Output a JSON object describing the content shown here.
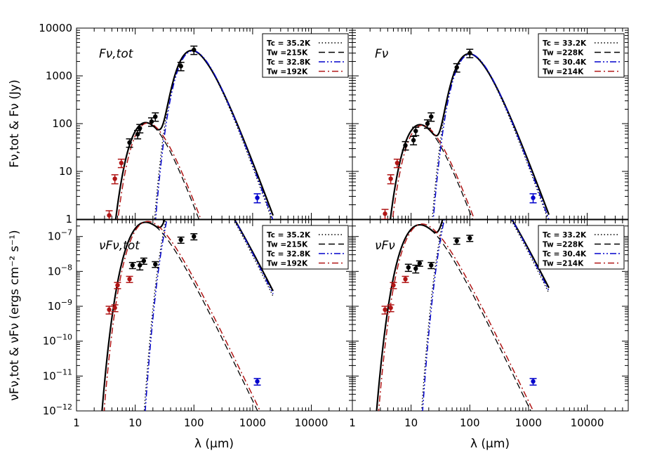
{
  "figure": {
    "xlabel": "λ (μm)",
    "ylabel_top": "Fν,tot & Fν (Jy)",
    "ylabel_bottom": "νFν,tot & νFν (ergs cm⁻² s⁻¹)",
    "colors": {
      "black": "#000000",
      "blue": "#0000cc",
      "red": "#b01515"
    }
  },
  "chart_data": [
    {
      "type": "line",
      "panel": "top-left",
      "title": "Fν,tot",
      "x_scale": "log",
      "y_scale": "log",
      "xlim": [
        1,
        50000
      ],
      "ylim": [
        1,
        10000
      ],
      "x_ticks": [
        "1",
        "10",
        "100",
        "1000",
        "10000"
      ],
      "y_ticks": [
        "1",
        "10",
        "100",
        "1000",
        "10000"
      ],
      "legend": {
        "position": "top-right",
        "entries": [
          {
            "label": "Tc = 35.2K",
            "color": "#000000",
            "style": "dotted"
          },
          {
            "label": "Tw =215K",
            "color": "#000000",
            "style": "dashed"
          },
          {
            "label": "Tc = 32.8K",
            "color": "#0000cc",
            "style": "dash-dot-dot"
          },
          {
            "label": "Tw =192K",
            "color": "#b01515",
            "style": "dash-dot"
          }
        ]
      },
      "points": [
        {
          "x": 3.6,
          "y": 1.2,
          "err": 0.3,
          "color": "#b01515"
        },
        {
          "x": 4.5,
          "y": 7,
          "err": 1.5,
          "color": "#b01515"
        },
        {
          "x": 5.8,
          "y": 15,
          "err": 3,
          "color": "#b01515"
        },
        {
          "x": 8.0,
          "y": 40,
          "err": 8,
          "color": "#000000"
        },
        {
          "x": 11,
          "y": 60,
          "err": 12,
          "color": "#000000"
        },
        {
          "x": 12,
          "y": 80,
          "err": 16,
          "color": "#000000"
        },
        {
          "x": 19,
          "y": 110,
          "err": 22,
          "color": "#000000"
        },
        {
          "x": 22,
          "y": 140,
          "err": 28,
          "color": "#000000"
        },
        {
          "x": 60,
          "y": 1600,
          "err": 320,
          "color": "#000000"
        },
        {
          "x": 100,
          "y": 3500,
          "err": 700,
          "color": "#000000"
        },
        {
          "x": 1200,
          "y": 2.8,
          "err": 0.6,
          "color": "#0000cc"
        }
      ],
      "model": {
        "Tc": 35.2,
        "Tw": 215,
        "cold_peak": 3400,
        "warm_peak": 105,
        "cold_scale": 1.0,
        "warm_scale": 0.98
      }
    },
    {
      "type": "line",
      "panel": "top-right",
      "title": "Fν",
      "x_scale": "log",
      "y_scale": "log",
      "xlim": [
        1,
        50000
      ],
      "ylim": [
        1,
        10000
      ],
      "x_ticks": [
        "1",
        "10",
        "100",
        "1000",
        "10000"
      ],
      "y_ticks": [
        "1",
        "10",
        "100",
        "1000",
        "10000"
      ],
      "legend": {
        "position": "top-right",
        "entries": [
          {
            "label": "Tc = 33.2K",
            "color": "#000000",
            "style": "dotted"
          },
          {
            "label": "Tw =228K",
            "color": "#000000",
            "style": "dashed"
          },
          {
            "label": "Tc = 30.4K",
            "color": "#0000cc",
            "style": "dash-dot-dot"
          },
          {
            "label": "Tw =214K",
            "color": "#b01515",
            "style": "dash-dot"
          }
        ]
      },
      "points": [
        {
          "x": 3.6,
          "y": 1.3,
          "err": 0.3,
          "color": "#b01515"
        },
        {
          "x": 4.5,
          "y": 7,
          "err": 1.5,
          "color": "#b01515"
        },
        {
          "x": 5.8,
          "y": 15,
          "err": 3,
          "color": "#b01515"
        },
        {
          "x": 8.0,
          "y": 35,
          "err": 7,
          "color": "#000000"
        },
        {
          "x": 11,
          "y": 45,
          "err": 9,
          "color": "#000000"
        },
        {
          "x": 12,
          "y": 70,
          "err": 14,
          "color": "#000000"
        },
        {
          "x": 19,
          "y": 100,
          "err": 20,
          "color": "#000000"
        },
        {
          "x": 22,
          "y": 140,
          "err": 28,
          "color": "#000000"
        },
        {
          "x": 60,
          "y": 1500,
          "err": 300,
          "color": "#000000"
        },
        {
          "x": 100,
          "y": 3000,
          "err": 600,
          "color": "#000000"
        },
        {
          "x": 1200,
          "y": 2.8,
          "err": 0.6,
          "color": "#0000cc"
        }
      ],
      "model": {
        "Tc": 33.2,
        "Tw": 228,
        "cold_peak": 2900,
        "warm_peak": 95,
        "cold_scale": 1.0,
        "warm_scale": 0.97
      }
    },
    {
      "type": "line",
      "panel": "bottom-left",
      "title": "νFν,tot",
      "x_scale": "log",
      "y_scale": "log",
      "xlim": [
        1,
        50000
      ],
      "ylim": [
        1e-12,
        3e-07
      ],
      "x_ticks": [
        "1",
        "10",
        "100",
        "1000",
        "10000"
      ],
      "y_ticks": [
        "10-12",
        "10-11",
        "10-10",
        "10-9",
        "10-8",
        "10-7"
      ],
      "legend": {
        "position": "top-right",
        "entries": [
          {
            "label": "Tc = 35.2K",
            "color": "#000000",
            "style": "dotted"
          },
          {
            "label": "Tw =215K",
            "color": "#000000",
            "style": "dashed"
          },
          {
            "label": "Tc = 32.8K",
            "color": "#0000cc",
            "style": "dash-dot-dot"
          },
          {
            "label": "Tw =192K",
            "color": "#b01515",
            "style": "dash-dot"
          }
        ]
      },
      "points": [
        {
          "x": 3.6,
          "y": 8e-10,
          "err": 2e-10,
          "color": "#b01515"
        },
        {
          "x": 4.5,
          "y": 9e-10,
          "err": 2e-10,
          "color": "#b01515"
        },
        {
          "x": 5.0,
          "y": 4e-09,
          "err": 8e-10,
          "color": "#b01515"
        },
        {
          "x": 8.0,
          "y": 6e-09,
          "err": 1.2e-09,
          "color": "#b01515"
        },
        {
          "x": 9.0,
          "y": 1.5e-08,
          "err": 3e-09,
          "color": "#000000"
        },
        {
          "x": 12,
          "y": 1.5e-08,
          "err": 4e-09,
          "color": "#000000"
        },
        {
          "x": 14,
          "y": 2e-08,
          "err": 4e-09,
          "color": "#000000"
        },
        {
          "x": 22,
          "y": 1.6e-08,
          "err": 3e-09,
          "color": "#000000"
        },
        {
          "x": 60,
          "y": 8e-08,
          "err": 1.6e-08,
          "color": "#000000"
        },
        {
          "x": 100,
          "y": 1e-07,
          "err": 2e-08,
          "color": "#000000"
        },
        {
          "x": 1200,
          "y": 7e-12,
          "err": 1.5e-12,
          "color": "#0000cc"
        }
      ],
      "model": {
        "Tc": 35.2,
        "Tw": 215,
        "cold_peak": 9.5e-08,
        "warm_peak": 1.9e-08,
        "cold_scale": 1.0,
        "warm_scale": 0.97
      }
    },
    {
      "type": "line",
      "panel": "bottom-right",
      "title": "νFν",
      "x_scale": "log",
      "y_scale": "log",
      "xlim": [
        1,
        50000
      ],
      "ylim": [
        1e-12,
        3e-07
      ],
      "x_ticks": [
        "1",
        "10",
        "100",
        "1000",
        "10000"
      ],
      "y_ticks": [
        "10-12",
        "10-11",
        "10-10",
        "10-9",
        "10-8",
        "10-7"
      ],
      "legend": {
        "position": "top-right",
        "entries": [
          {
            "label": "Tc = 33.2K",
            "color": "#000000",
            "style": "dotted"
          },
          {
            "label": "Tw =228K",
            "color": "#000000",
            "style": "dashed"
          },
          {
            "label": "Tc = 30.4K",
            "color": "#0000cc",
            "style": "dash-dot-dot"
          },
          {
            "label": "Tw =214K",
            "color": "#b01515",
            "style": "dash-dot"
          }
        ]
      },
      "points": [
        {
          "x": 3.6,
          "y": 8e-10,
          "err": 2e-10,
          "color": "#b01515"
        },
        {
          "x": 4.5,
          "y": 9e-10,
          "err": 2e-10,
          "color": "#b01515"
        },
        {
          "x": 5.0,
          "y": 4e-09,
          "err": 8e-10,
          "color": "#b01515"
        },
        {
          "x": 8.0,
          "y": 6e-09,
          "err": 1.2e-09,
          "color": "#b01515"
        },
        {
          "x": 9.0,
          "y": 1.3e-08,
          "err": 3e-09,
          "color": "#000000"
        },
        {
          "x": 12,
          "y": 1.2e-08,
          "err": 3e-09,
          "color": "#000000"
        },
        {
          "x": 14,
          "y": 1.7e-08,
          "err": 3e-09,
          "color": "#000000"
        },
        {
          "x": 22,
          "y": 1.5e-08,
          "err": 3e-09,
          "color": "#000000"
        },
        {
          "x": 60,
          "y": 7.5e-08,
          "err": 1.5e-08,
          "color": "#000000"
        },
        {
          "x": 100,
          "y": 9e-08,
          "err": 1.8e-08,
          "color": "#000000"
        },
        {
          "x": 1200,
          "y": 7e-12,
          "err": 1.5e-12,
          "color": "#0000cc"
        }
      ],
      "model": {
        "Tc": 33.2,
        "Tw": 228,
        "cold_peak": 9e-08,
        "warm_peak": 1.7e-08,
        "cold_scale": 1.0,
        "warm_scale": 0.97
      }
    }
  ]
}
